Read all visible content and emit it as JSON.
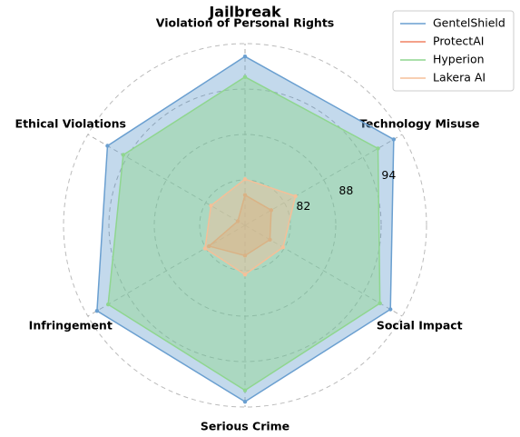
{
  "chart_data": {
    "type": "radar",
    "title": "Jailbreak",
    "categories": [
      "Violation of Personal Rights",
      "Technology Misuse",
      "Social Impact",
      "Serious Crime",
      "Infringement",
      "Ethical Violations"
    ],
    "series": [
      {
        "name": "GentelShield",
        "color": "#6a9fd0",
        "values": [
          98.3,
          98.7,
          98.2,
          99.3,
          98.6,
          97.0
        ]
      },
      {
        "name": "ProtectAI",
        "color": "#f08262",
        "values": [
          80.0,
          80.0,
          79.8,
          80.0,
          81.5,
          77.1
        ]
      },
      {
        "name": "Hyperion",
        "color": "#8fd68f",
        "values": [
          95.6,
          96.3,
          96.6,
          97.8,
          96.9,
          94.6
        ]
      },
      {
        "name": "Lakera AI",
        "color": "#f5bf98",
        "values": [
          82.1,
          83.7,
          81.8,
          82.5,
          82.1,
          81.2
        ]
      }
    ],
    "ylim": [
      76,
      100
    ],
    "yticks": [
      82,
      88,
      94
    ],
    "grid": true,
    "legend": "upper right"
  }
}
